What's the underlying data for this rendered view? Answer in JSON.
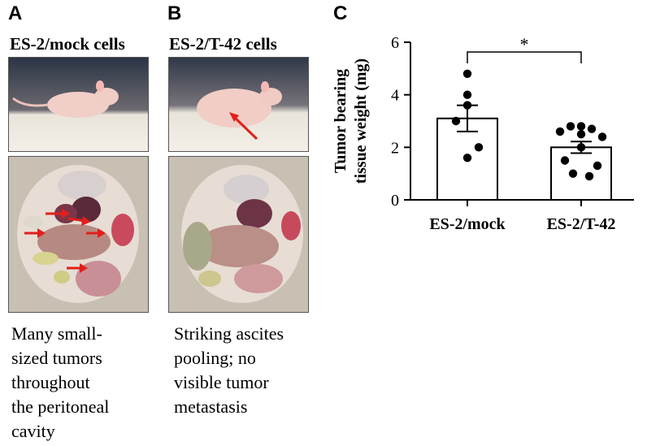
{
  "panels": {
    "a": {
      "letter": "A",
      "title": "ES-2/mock cells",
      "caption": "Many small-\nsized tumors\nthroughout\nthe peritoneal\ncavity"
    },
    "b": {
      "letter": "B",
      "title": "ES-2/T-42 cells",
      "caption": "Striking ascites\npooling; no\nvisible tumor\nmetastasis"
    },
    "c": {
      "letter": "C"
    }
  },
  "colors": {
    "arrow": "#e0201c",
    "bar_fill": "#ffffff",
    "ink": "#000000"
  },
  "chart_data": {
    "type": "bar",
    "categories": [
      "ES-2/mock",
      "ES-2/T-42"
    ],
    "ylabel_lines": [
      "Tumor bearing",
      "tissue weight (mg)"
    ],
    "ylim": [
      0,
      6
    ],
    "yticks": [
      0,
      2,
      4,
      6
    ],
    "values": [
      3.1,
      2.0
    ],
    "sem": [
      0.5,
      0.22
    ],
    "points": [
      [
        4.8,
        4.0,
        3.6,
        3.0,
        2.0,
        1.6
      ],
      [
        2.8,
        2.8,
        2.7,
        2.6,
        2.5,
        2.4,
        2.0,
        1.5,
        1.3,
        1.0,
        0.9
      ]
    ],
    "significance": "*",
    "grid": false
  }
}
